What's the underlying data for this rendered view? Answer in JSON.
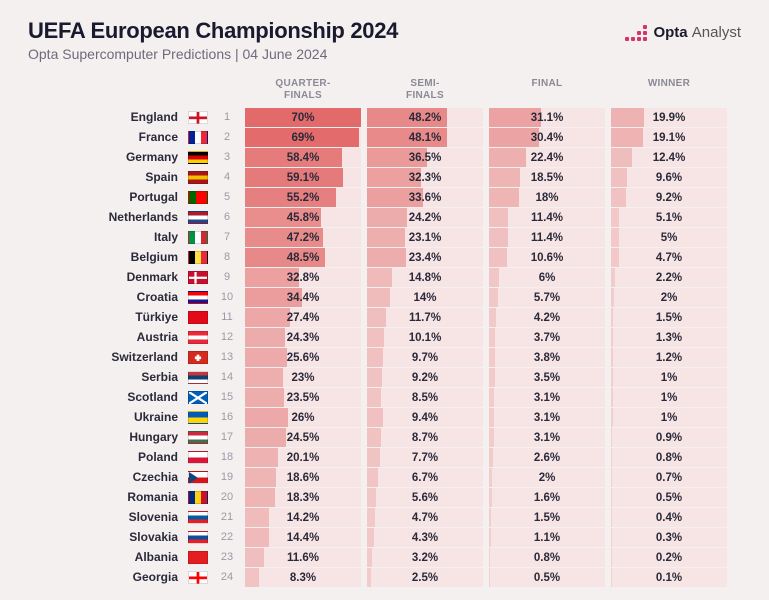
{
  "header": {
    "title": "UEFA European Championship 2024",
    "subtitle": "Opta Supercomputer Predictions | 04 June 2024",
    "logo_primary": "Opta",
    "logo_secondary": "Analyst"
  },
  "columns": [
    "QUARTER-\nFINALS",
    "SEMI-\nFINALS",
    "FINAL",
    "WINNER"
  ],
  "style": {
    "cell_bg": "#f7e5e5",
    "bar_gradient_low": "#f3cfcf",
    "bar_gradient_high": "#e36a6a",
    "max_value_for_shading": 70
  },
  "rows": [
    {
      "rank": 1,
      "country": "England",
      "flag": {
        "bands": [
          "#ffffff"
        ],
        "overlay": "cross",
        "overlay_color": "#ce1124"
      },
      "qf": 70,
      "sf": 48.2,
      "f": 31.1,
      "w": 19.9
    },
    {
      "rank": 2,
      "country": "France",
      "flag": {
        "bands": [
          "#002395",
          "#ffffff",
          "#ed2939"
        ],
        "dir": "v"
      },
      "qf": 69,
      "sf": 48.1,
      "f": 30.4,
      "w": 19.1
    },
    {
      "rank": 3,
      "country": "Germany",
      "flag": {
        "bands": [
          "#000000",
          "#dd0000",
          "#ffce00"
        ],
        "dir": "h"
      },
      "qf": 58.4,
      "sf": 36.5,
      "f": 22.4,
      "w": 12.4
    },
    {
      "rank": 4,
      "country": "Spain",
      "flag": {
        "bands": [
          "#aa151b",
          "#f1bf00",
          "#aa151b"
        ],
        "dir": "h"
      },
      "qf": 59.1,
      "sf": 32.3,
      "f": 18.5,
      "w": 9.6
    },
    {
      "rank": 5,
      "country": "Portugal",
      "flag": {
        "bands": [
          "#006600",
          "#ff0000"
        ],
        "dir": "v",
        "split": "40"
      },
      "qf": 55.2,
      "sf": 33.6,
      "f": 18,
      "w": 9.2
    },
    {
      "rank": 6,
      "country": "Netherlands",
      "flag": {
        "bands": [
          "#ae1c28",
          "#ffffff",
          "#21468b"
        ],
        "dir": "h"
      },
      "qf": 45.8,
      "sf": 24.2,
      "f": 11.4,
      "w": 5.1
    },
    {
      "rank": 7,
      "country": "Italy",
      "flag": {
        "bands": [
          "#009246",
          "#ffffff",
          "#ce2b37"
        ],
        "dir": "v"
      },
      "qf": 47.2,
      "sf": 23.1,
      "f": 11.4,
      "w": 5
    },
    {
      "rank": 8,
      "country": "Belgium",
      "flag": {
        "bands": [
          "#000000",
          "#fae042",
          "#ed2939"
        ],
        "dir": "v"
      },
      "qf": 48.5,
      "sf": 23.4,
      "f": 10.6,
      "w": 4.7
    },
    {
      "rank": 9,
      "country": "Denmark",
      "flag": {
        "bands": [
          "#c8102e"
        ],
        "overlay": "nordic",
        "overlay_color": "#ffffff"
      },
      "qf": 32.8,
      "sf": 14.8,
      "f": 6,
      "w": 2.2
    },
    {
      "rank": 10,
      "country": "Croatia",
      "flag": {
        "bands": [
          "#ff0000",
          "#ffffff",
          "#171796"
        ],
        "dir": "h"
      },
      "qf": 34.4,
      "sf": 14,
      "f": 5.7,
      "w": 2
    },
    {
      "rank": 11,
      "country": "Türkiye",
      "flag": {
        "bands": [
          "#e30a17"
        ]
      },
      "qf": 27.4,
      "sf": 11.7,
      "f": 4.2,
      "w": 1.5
    },
    {
      "rank": 12,
      "country": "Austria",
      "flag": {
        "bands": [
          "#ed2939",
          "#ffffff",
          "#ed2939"
        ],
        "dir": "h"
      },
      "qf": 24.3,
      "sf": 10.1,
      "f": 3.7,
      "w": 1.3
    },
    {
      "rank": 13,
      "country": "Switzerland",
      "flag": {
        "bands": [
          "#d52b1e"
        ],
        "overlay": "plus",
        "overlay_color": "#ffffff"
      },
      "qf": 25.6,
      "sf": 9.7,
      "f": 3.8,
      "w": 1.2
    },
    {
      "rank": 14,
      "country": "Serbia",
      "flag": {
        "bands": [
          "#c6363c",
          "#0c4076",
          "#ffffff"
        ],
        "dir": "h"
      },
      "qf": 23,
      "sf": 9.2,
      "f": 3.5,
      "w": 1
    },
    {
      "rank": 15,
      "country": "Scotland",
      "flag": {
        "bands": [
          "#005eb8"
        ],
        "overlay": "saltire",
        "overlay_color": "#ffffff"
      },
      "qf": 23.5,
      "sf": 8.5,
      "f": 3.1,
      "w": 1
    },
    {
      "rank": 16,
      "country": "Ukraine",
      "flag": {
        "bands": [
          "#005bbb",
          "#ffd500"
        ],
        "dir": "h"
      },
      "qf": 26,
      "sf": 9.4,
      "f": 3.1,
      "w": 1
    },
    {
      "rank": 17,
      "country": "Hungary",
      "flag": {
        "bands": [
          "#cd2a3e",
          "#ffffff",
          "#436f4d"
        ],
        "dir": "h"
      },
      "qf": 24.5,
      "sf": 8.7,
      "f": 3.1,
      "w": 0.9
    },
    {
      "rank": 18,
      "country": "Poland",
      "flag": {
        "bands": [
          "#ffffff",
          "#dc143c"
        ],
        "dir": "h"
      },
      "qf": 20.1,
      "sf": 7.7,
      "f": 2.6,
      "w": 0.8
    },
    {
      "rank": 19,
      "country": "Czechia",
      "flag": {
        "bands": [
          "#ffffff",
          "#d7141a"
        ],
        "dir": "h",
        "overlay": "triangle",
        "overlay_color": "#11457e"
      },
      "qf": 18.6,
      "sf": 6.7,
      "f": 2,
      "w": 0.7
    },
    {
      "rank": 20,
      "country": "Romania",
      "flag": {
        "bands": [
          "#002b7f",
          "#fcd116",
          "#ce1126"
        ],
        "dir": "v"
      },
      "qf": 18.3,
      "sf": 5.6,
      "f": 1.6,
      "w": 0.5
    },
    {
      "rank": 21,
      "country": "Slovenia",
      "flag": {
        "bands": [
          "#ffffff",
          "#005da4",
          "#ed1c24"
        ],
        "dir": "h"
      },
      "qf": 14.2,
      "sf": 4.7,
      "f": 1.5,
      "w": 0.4
    },
    {
      "rank": 22,
      "country": "Slovakia",
      "flag": {
        "bands": [
          "#ffffff",
          "#0b4ea2",
          "#ee1c25"
        ],
        "dir": "h"
      },
      "qf": 14.4,
      "sf": 4.3,
      "f": 1.1,
      "w": 0.3
    },
    {
      "rank": 23,
      "country": "Albania",
      "flag": {
        "bands": [
          "#e41e20"
        ]
      },
      "qf": 11.6,
      "sf": 3.2,
      "f": 0.8,
      "w": 0.2
    },
    {
      "rank": 24,
      "country": "Georgia",
      "flag": {
        "bands": [
          "#ffffff"
        ],
        "overlay": "cross",
        "overlay_color": "#ff0000"
      },
      "qf": 8.3,
      "sf": 2.5,
      "f": 0.5,
      "w": 0.1
    }
  ]
}
